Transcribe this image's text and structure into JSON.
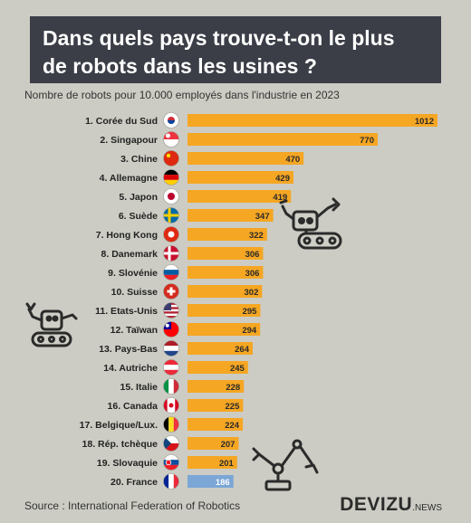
{
  "title_line1": "Dans quels pays trouve-t-on le plus",
  "title_line2": "de robots dans les usines ?",
  "subtitle": "Nombre de robots pour 10.000 employés dans l'industrie en 2023",
  "source": "Source : International Federation of Robotics",
  "brand": "DEVIZU",
  "brand_suffix": ".NEWS",
  "colors": {
    "bar": "#f5a623",
    "bar_highlight": "#7ba6d6",
    "background": "#ccccc4",
    "title_box": "#3b3e47"
  },
  "chart_data": {
    "type": "bar",
    "orientation": "horizontal",
    "title": "Dans quels pays trouve-t-on le plus de robots dans les usines ?",
    "subtitle": "Nombre de robots pour 10.000 employés dans l'industrie en 2023",
    "categories": [
      "1. Corée du Sud",
      "2. Singapour",
      "3. Chine",
      "4. Allemagne",
      "5. Japon",
      "6. Suède",
      "7. Hong Kong",
      "8. Danemark",
      "9. Slovénie",
      "10. Suisse",
      "11. Etats-Unis",
      "12. Taïwan",
      "13. Pays-Bas",
      "14. Autriche",
      "15. Italie",
      "16. Canada",
      "17. Belgique/Lux.",
      "18. Rép. tchèque",
      "19. Slovaquie",
      "20. France"
    ],
    "values": [
      1012,
      770,
      470,
      429,
      419,
      347,
      322,
      306,
      306,
      302,
      295,
      294,
      264,
      245,
      228,
      225,
      224,
      207,
      201,
      186
    ],
    "flags": [
      "kr",
      "sg",
      "cn",
      "de",
      "jp",
      "se",
      "hk",
      "dk",
      "si",
      "ch",
      "us",
      "tw",
      "nl",
      "at",
      "it",
      "ca",
      "be",
      "cz",
      "sk",
      "fr"
    ],
    "highlight": "20. France",
    "xlim": [
      0,
      1012
    ],
    "grid": false,
    "legend": "none"
  }
}
